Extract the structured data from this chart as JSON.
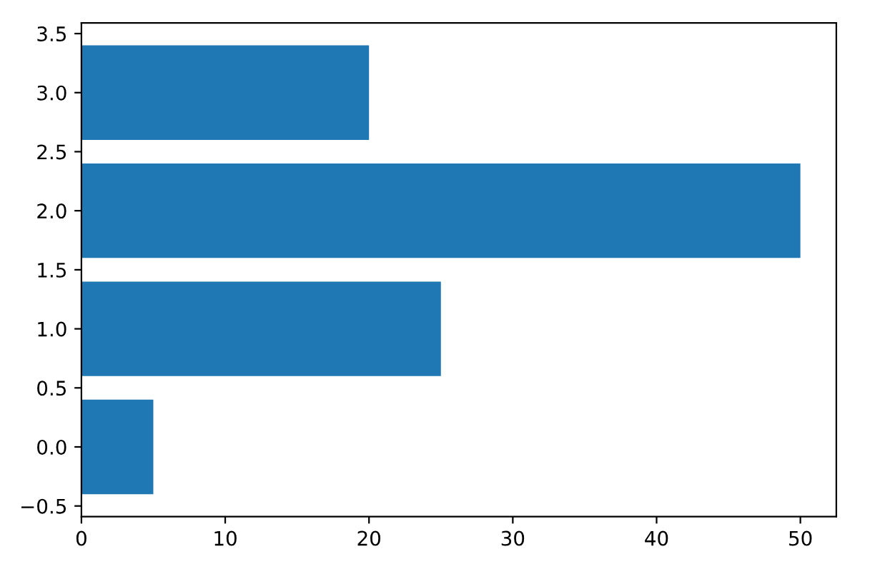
{
  "chart_data": {
    "type": "bar",
    "orientation": "horizontal",
    "x": [
      0,
      1,
      2,
      3
    ],
    "values": [
      5,
      25,
      50,
      20
    ],
    "color": "#1f77b4",
    "xlim": [
      0,
      52.5
    ],
    "xticks": [
      0,
      10,
      20,
      30,
      40,
      50
    ],
    "ylim": [
      -0.59,
      3.59
    ],
    "yticks": [
      {
        "value": -0.5,
        "label": "−0.5"
      },
      {
        "value": 0,
        "label": "0.0"
      },
      0.5,
      {
        "value": 1,
        "label": "1.0"
      },
      1.5,
      {
        "value": 2,
        "label": "2.0"
      },
      2.5,
      {
        "value": 3,
        "label": "3.0"
      },
      3.5
    ],
    "grid": false,
    "legend": false
  }
}
